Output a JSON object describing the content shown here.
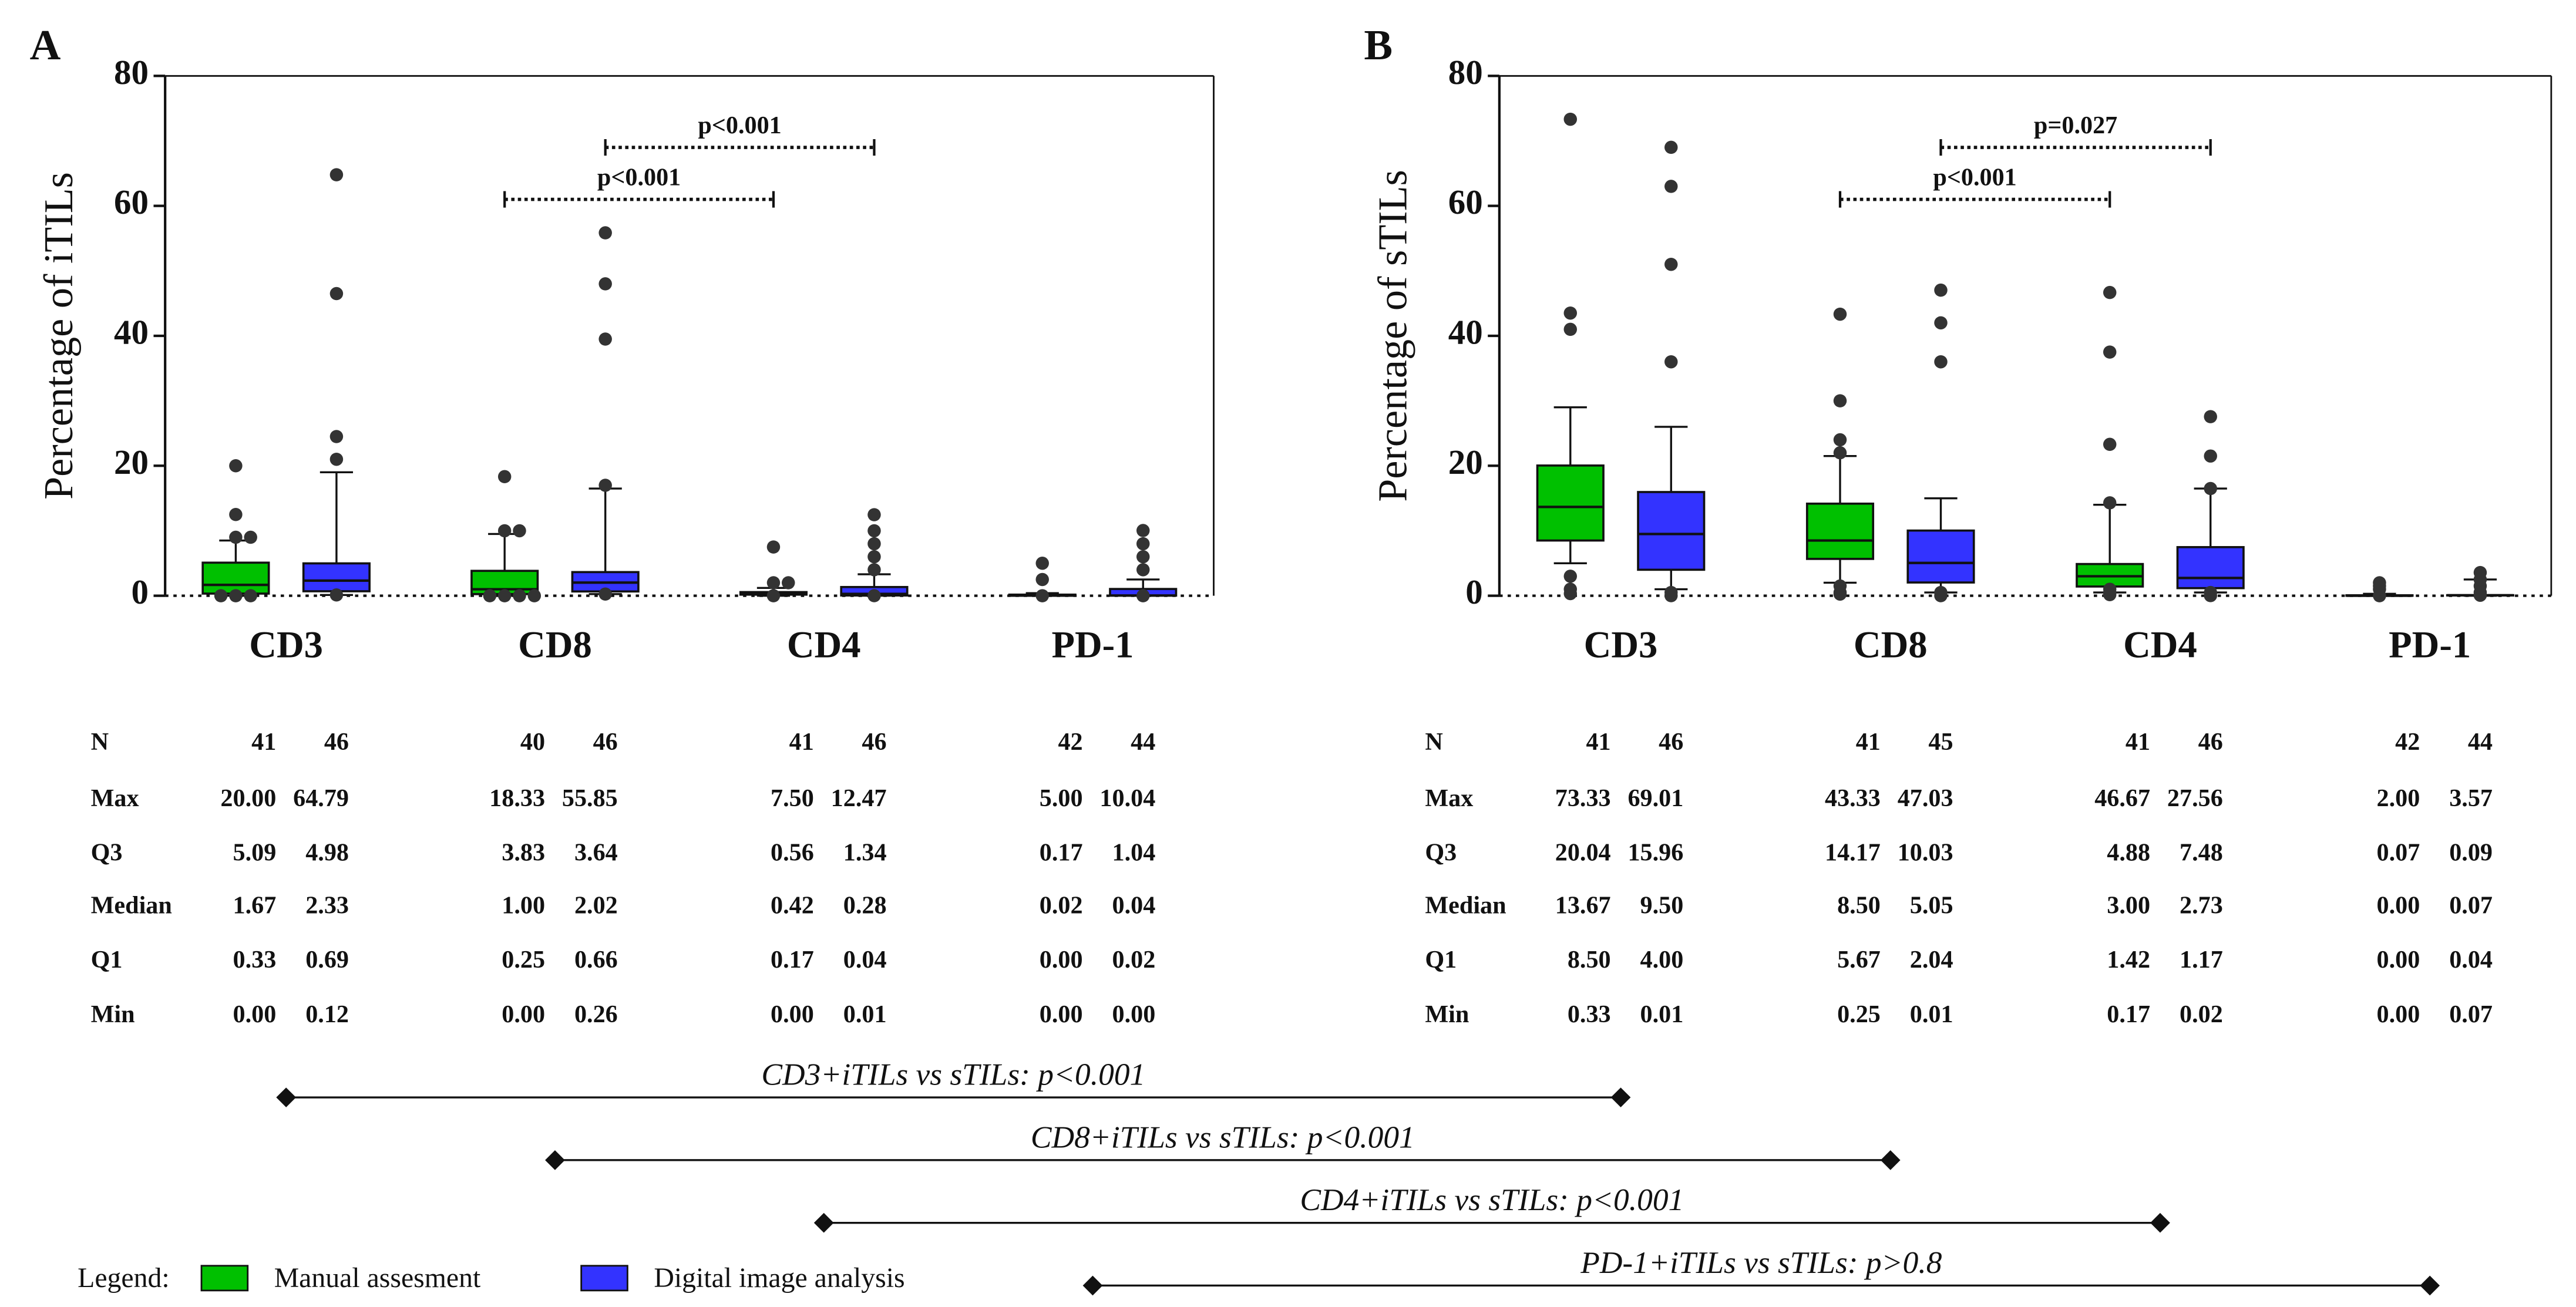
{
  "chart_data": [
    {
      "type": "box",
      "panel": "A",
      "ylabel": "Percentage of iTILs",
      "categories": [
        "CD3",
        "CD8",
        "CD4",
        "PD-1"
      ],
      "ylim": [
        0,
        80
      ],
      "yticks": [
        0,
        20,
        40,
        60,
        80
      ],
      "table_rows": [
        "N",
        "Max",
        "Q3",
        "Median",
        "Q1",
        "Min"
      ],
      "series": [
        {
          "name": "Manual assesment",
          "color": "#00c000",
          "n": [
            41,
            40,
            41,
            42
          ],
          "stats": [
            [
              20.0,
              18.33,
              7.5,
              5.0
            ],
            [
              5.09,
              3.83,
              0.56,
              0.17
            ],
            [
              1.67,
              1.0,
              0.42,
              0.02
            ],
            [
              0.33,
              0.25,
              0.17,
              0.0
            ],
            [
              0.0,
              0.0,
              0.0,
              0.0
            ]
          ],
          "stat_labels": [
            [
              "20.00",
              "18.33",
              "7.50",
              "5.00"
            ],
            [
              "5.09",
              "3.83",
              "0.56",
              "0.17"
            ],
            [
              "1.67",
              "1.00",
              "0.42",
              "0.02"
            ],
            [
              "0.33",
              "0.25",
              "0.17",
              "0.00"
            ],
            [
              "0.00",
              "0.00",
              "0.00",
              "0.00"
            ]
          ],
          "whisker_low": [
            0,
            0,
            0,
            0
          ],
          "whisker_high": [
            8.5,
            9.5,
            1.2,
            0.4
          ],
          "outliers": [
            [
              0,
              0,
              9,
              9,
              12.5
            ],
            [
              0,
              0,
              0,
              10,
              10
            ],
            [
              2,
              2
            ],
            [
              2.5
            ]
          ]
        },
        {
          "name": "Digital image analysis",
          "color": "#3333ff",
          "n": [
            46,
            46,
            46,
            44
          ],
          "stats": [
            [
              64.79,
              55.85,
              12.47,
              10.04
            ],
            [
              4.98,
              3.64,
              1.34,
              1.04
            ],
            [
              2.33,
              2.02,
              0.28,
              0.04
            ],
            [
              0.69,
              0.66,
              0.04,
              0.02
            ],
            [
              0.12,
              0.26,
              0.01,
              0.0
            ]
          ],
          "stat_labels": [
            [
              "64.79",
              "55.85",
              "12.47",
              "10.04"
            ],
            [
              "4.98",
              "3.64",
              "1.34",
              "1.04"
            ],
            [
              "2.33",
              "2.02",
              "0.28",
              "0.04"
            ],
            [
              "0.69",
              "0.66",
              "0.04",
              "0.02"
            ],
            [
              "0.12",
              "0.26",
              "0.01",
              "0.00"
            ]
          ],
          "whisker_low": [
            0.12,
            0.26,
            0.01,
            0
          ],
          "whisker_high": [
            19,
            16.5,
            3.3,
            2.5
          ],
          "outliers": [
            [
              21,
              24.5,
              46.5
            ],
            [
              17,
              39.5,
              48
            ],
            [
              4,
              6,
              8,
              10
            ],
            [
              4,
              6,
              8
            ]
          ]
        }
      ],
      "brackets": [
        {
          "label": "p<0.001",
          "series": 0,
          "from": 1,
          "to": 2,
          "y": 61
        },
        {
          "label": "p<0.001",
          "series": 1,
          "from": 1,
          "to": 2,
          "y": 69
        }
      ]
    },
    {
      "type": "box",
      "panel": "B",
      "ylabel": "Percentage of sTILs",
      "categories": [
        "CD3",
        "CD8",
        "CD4",
        "PD-1"
      ],
      "ylim": [
        0,
        80
      ],
      "yticks": [
        0,
        20,
        40,
        60,
        80
      ],
      "table_rows": [
        "N",
        "Max",
        "Q3",
        "Median",
        "Q1",
        "Min"
      ],
      "series": [
        {
          "name": "Manual assesment",
          "color": "#00c000",
          "n": [
            41,
            41,
            41,
            42
          ],
          "stats": [
            [
              73.33,
              43.33,
              46.67,
              2.0
            ],
            [
              20.04,
              14.17,
              4.88,
              0.07
            ],
            [
              13.67,
              8.5,
              3.0,
              0.0
            ],
            [
              8.5,
              5.67,
              1.42,
              0.0
            ],
            [
              0.33,
              0.25,
              0.17,
              0.0
            ]
          ],
          "stat_labels": [
            [
              "73.33",
              "43.33",
              "46.67",
              "2.00"
            ],
            [
              "20.04",
              "14.17",
              "4.88",
              "0.07"
            ],
            [
              "13.67",
              "8.50",
              "3.00",
              "0.00"
            ],
            [
              "8.50",
              "5.67",
              "1.42",
              "0.00"
            ],
            [
              "0.33",
              "0.25",
              "0.17",
              "0.00"
            ]
          ],
          "whisker_low": [
            5,
            2,
            0.5,
            0
          ],
          "whisker_high": [
            29,
            21.5,
            14,
            0.3
          ],
          "outliers": [
            [
              1,
              3,
              41,
              43.5
            ],
            [
              0.5,
              1.5,
              22,
              24,
              30
            ],
            [
              0.5,
              1,
              14.3,
              23.3,
              37.5
            ],
            [
              1,
              1.5
            ]
          ]
        },
        {
          "name": "Digital image analysis",
          "color": "#3333ff",
          "n": [
            46,
            45,
            46,
            44
          ],
          "stats": [
            [
              69.01,
              47.03,
              27.56,
              3.57
            ],
            [
              15.96,
              10.03,
              7.48,
              0.09
            ],
            [
              9.5,
              5.05,
              2.73,
              0.07
            ],
            [
              4.0,
              2.04,
              1.17,
              0.04
            ],
            [
              0.01,
              0.01,
              0.02,
              0.07
            ]
          ],
          "stat_labels": [
            [
              "69.01",
              "47.03",
              "27.56",
              "3.57"
            ],
            [
              "15.96",
              "10.03",
              "7.48",
              "0.09"
            ],
            [
              "9.50",
              "5.05",
              "2.73",
              "0.07"
            ],
            [
              "4.00",
              "2.04",
              "1.17",
              "0.04"
            ],
            [
              "0.01",
              "0.01",
              "0.02",
              "0.07"
            ]
          ],
          "whisker_low": [
            1,
            0.5,
            0.5,
            0
          ],
          "whisker_high": [
            26,
            15,
            16.5,
            2.5
          ],
          "outliers": [
            [
              0.5,
              36,
              51,
              63
            ],
            [
              0.5,
              36,
              42
            ],
            [
              0.5,
              16.5,
              21.5
            ],
            [
              0.5,
              1.5,
              2.5
            ]
          ]
        }
      ],
      "brackets": [
        {
          "label": "p<0.001",
          "series": 0,
          "from": 1,
          "to": 2,
          "y": 61
        },
        {
          "label": "p=0.027",
          "series": 1,
          "from": 1,
          "to": 2,
          "y": 69
        }
      ]
    }
  ],
  "comparisons": [
    "CD3+iTILs vs sTILs: p<0.001",
    "CD8+iTILs vs sTILs: p<0.001",
    "CD4+iTILs vs sTILs: p<0.001",
    "PD-1+iTILs vs sTILs: p>0.8"
  ],
  "legend_title": "Legend:"
}
